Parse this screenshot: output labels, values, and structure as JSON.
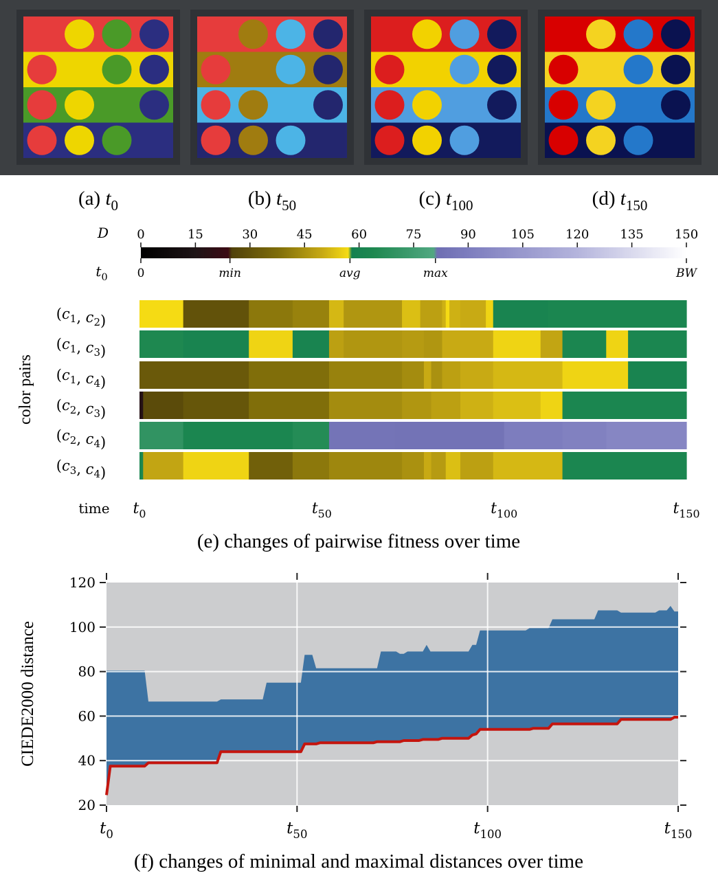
{
  "palettes": {
    "frame_color": "#3c3f42",
    "panels": [
      {
        "caption_prefix": "(a) ",
        "t_sub": "0",
        "colors": [
          "#e63c3c",
          "#eed600",
          "#4a9a28",
          "#2b2e80"
        ]
      },
      {
        "caption_prefix": "(b) ",
        "t_sub": "50",
        "colors": [
          "#e63c3c",
          "#a07c10",
          "#4cb4e6",
          "#23266e"
        ]
      },
      {
        "caption_prefix": "(c) ",
        "t_sub": "100",
        "colors": [
          "#dc1e1e",
          "#f2d200",
          "#509ee0",
          "#121a5c"
        ]
      },
      {
        "caption_prefix": "(d) ",
        "t_sub": "150",
        "colors": [
          "#d80000",
          "#f4d320",
          "#2478ca",
          "#0a1250"
        ]
      }
    ]
  },
  "colorbar": {
    "row_label_top": "D",
    "row_label_bottom": "t",
    "row_label_bottom_sub": "0",
    "ticks": [
      "0",
      "15",
      "30",
      "45",
      "60",
      "75",
      "90",
      "105",
      "120",
      "135",
      "150"
    ],
    "range": [
      0,
      150
    ],
    "markers": [
      {
        "label": "0",
        "value": 0
      },
      {
        "label": "min",
        "value": 24.5
      },
      {
        "label": "avg",
        "value": 57.5
      },
      {
        "label": "max",
        "value": 81
      },
      {
        "label": "BW",
        "value": 150
      }
    ]
  },
  "pair_panel": {
    "ylabel": "color pairs",
    "time_label": "time",
    "caption": "(e) changes of pairwise fitness over time",
    "time_ticks": [
      {
        "t": "t",
        "sub": "0",
        "value": 0
      },
      {
        "t": "t",
        "sub": "50",
        "value": 50
      },
      {
        "t": "t",
        "sub": "100",
        "value": 100
      },
      {
        "t": "t",
        "sub": "150",
        "value": 150
      }
    ],
    "rows": [
      {
        "a": "1",
        "b": "2",
        "segments": [
          [
            0,
            12,
            57
          ],
          [
            12,
            30,
            30
          ],
          [
            30,
            42,
            40
          ],
          [
            42,
            52,
            42
          ],
          [
            52,
            56,
            52
          ],
          [
            56,
            72,
            46
          ],
          [
            72,
            77,
            53
          ],
          [
            77,
            83,
            48
          ],
          [
            83,
            84,
            51
          ],
          [
            84,
            85,
            57
          ],
          [
            85,
            88,
            51
          ],
          [
            88,
            95,
            50
          ],
          [
            95,
            97,
            56
          ],
          [
            97,
            112,
            61
          ],
          [
            112,
            150,
            62
          ]
        ]
      },
      {
        "a": "1",
        "b": "3",
        "segments": [
          [
            0,
            12,
            64
          ],
          [
            12,
            30,
            61
          ],
          [
            30,
            42,
            56
          ],
          [
            42,
            52,
            61
          ],
          [
            52,
            56,
            48
          ],
          [
            56,
            72,
            46
          ],
          [
            72,
            78,
            47
          ],
          [
            78,
            83,
            46
          ],
          [
            83,
            97,
            50
          ],
          [
            97,
            110,
            56
          ],
          [
            110,
            116,
            49
          ],
          [
            116,
            128,
            62
          ],
          [
            128,
            134,
            56
          ],
          [
            134,
            150,
            62
          ]
        ]
      },
      {
        "a": "1",
        "b": "4",
        "segments": [
          [
            0,
            30,
            32
          ],
          [
            30,
            52,
            38
          ],
          [
            52,
            72,
            42
          ],
          [
            72,
            78,
            44
          ],
          [
            78,
            80,
            50
          ],
          [
            80,
            83,
            45
          ],
          [
            83,
            88,
            48
          ],
          [
            88,
            97,
            50
          ],
          [
            97,
            116,
            52
          ],
          [
            116,
            134,
            56
          ],
          [
            134,
            150,
            61
          ]
        ]
      },
      {
        "a": "2",
        "b": "3",
        "segments": [
          [
            0,
            1,
            17
          ],
          [
            1,
            12,
            28
          ],
          [
            12,
            30,
            31
          ],
          [
            30,
            52,
            38
          ],
          [
            52,
            72,
            44
          ],
          [
            72,
            80,
            46
          ],
          [
            80,
            88,
            48
          ],
          [
            88,
            97,
            51
          ],
          [
            97,
            110,
            53
          ],
          [
            110,
            116,
            56
          ],
          [
            116,
            150,
            62
          ]
        ]
      },
      {
        "a": "2",
        "b": "4",
        "segments": [
          [
            0,
            12,
            70
          ],
          [
            12,
            30,
            62
          ],
          [
            30,
            42,
            62
          ],
          [
            42,
            52,
            66
          ],
          [
            52,
            70,
            85
          ],
          [
            70,
            100,
            84
          ],
          [
            100,
            116,
            90
          ],
          [
            116,
            128,
            92
          ],
          [
            128,
            150,
            95
          ]
        ]
      },
      {
        "a": "3",
        "b": "4",
        "segments": [
          [
            0,
            1,
            62
          ],
          [
            1,
            12,
            49
          ],
          [
            12,
            30,
            56
          ],
          [
            30,
            42,
            34
          ],
          [
            42,
            52,
            40
          ],
          [
            52,
            72,
            43
          ],
          [
            72,
            78,
            45
          ],
          [
            78,
            80,
            50
          ],
          [
            80,
            84,
            47
          ],
          [
            84,
            88,
            53
          ],
          [
            88,
            97,
            48
          ],
          [
            97,
            116,
            52
          ],
          [
            116,
            150,
            62
          ]
        ]
      }
    ]
  },
  "chart_data": {
    "type": "area",
    "title": "",
    "caption": "(f) changes of minimal and maximal distances over time",
    "ylabel": "CIEDE2000 distance",
    "xlim": [
      0,
      150
    ],
    "ylim": [
      20,
      120
    ],
    "yticks": [
      20,
      40,
      60,
      80,
      100,
      120
    ],
    "xticks": [
      {
        "t": "t",
        "sub": "0",
        "value": 0
      },
      {
        "t": "t",
        "sub": "50",
        "value": 50
      },
      {
        "t": "t",
        "sub": "100",
        "value": 100
      },
      {
        "t": "t",
        "sub": "150",
        "value": 150
      }
    ],
    "grid": true,
    "colors": {
      "background": "#cccdcf",
      "area": "#3d73a3",
      "line": "#c4150e",
      "grid": "#ffffff"
    },
    "max_series": [
      [
        0,
        80.5
      ],
      [
        10,
        80.5
      ],
      [
        11,
        66.5
      ],
      [
        29,
        66.5
      ],
      [
        30,
        67.5
      ],
      [
        41,
        67.5
      ],
      [
        42,
        75
      ],
      [
        51,
        75
      ],
      [
        52,
        87.5
      ],
      [
        54,
        87.5
      ],
      [
        55,
        81.5
      ],
      [
        71,
        81.5
      ],
      [
        72,
        89
      ],
      [
        76,
        89
      ],
      [
        77,
        88
      ],
      [
        78,
        88
      ],
      [
        79,
        89
      ],
      [
        83,
        89
      ],
      [
        84,
        92
      ],
      [
        85,
        89
      ],
      [
        95,
        89
      ],
      [
        96,
        92
      ],
      [
        97,
        92
      ],
      [
        98,
        98.5
      ],
      [
        110,
        98.5
      ],
      [
        111,
        99.5
      ],
      [
        116,
        99.5
      ],
      [
        117,
        103.5
      ],
      [
        128,
        103.5
      ],
      [
        129,
        107.5
      ],
      [
        134,
        107.5
      ],
      [
        135,
        106.5
      ],
      [
        144,
        106.5
      ],
      [
        145,
        107.5
      ],
      [
        147,
        107.5
      ],
      [
        148,
        109.5
      ],
      [
        149,
        107
      ],
      [
        150,
        107
      ]
    ],
    "min_series": [
      [
        0,
        24.5
      ],
      [
        1,
        37.5
      ],
      [
        10,
        37.5
      ],
      [
        11,
        39
      ],
      [
        29,
        39
      ],
      [
        30,
        44
      ],
      [
        51,
        44
      ],
      [
        52,
        47.5
      ],
      [
        55,
        47.5
      ],
      [
        56,
        48
      ],
      [
        70,
        48
      ],
      [
        71,
        48.5
      ],
      [
        77,
        48.5
      ],
      [
        78,
        49
      ],
      [
        82,
        49
      ],
      [
        83,
        49.5
      ],
      [
        87,
        49.5
      ],
      [
        88,
        50
      ],
      [
        95,
        50
      ],
      [
        96,
        51.5
      ],
      [
        97,
        52
      ],
      [
        98,
        54
      ],
      [
        111,
        54
      ],
      [
        112,
        54.5
      ],
      [
        116,
        54.5
      ],
      [
        117,
        56.5
      ],
      [
        134,
        56.5
      ],
      [
        135,
        58.5
      ],
      [
        148,
        58.5
      ],
      [
        149,
        59.5
      ],
      [
        150,
        59.5
      ]
    ]
  }
}
